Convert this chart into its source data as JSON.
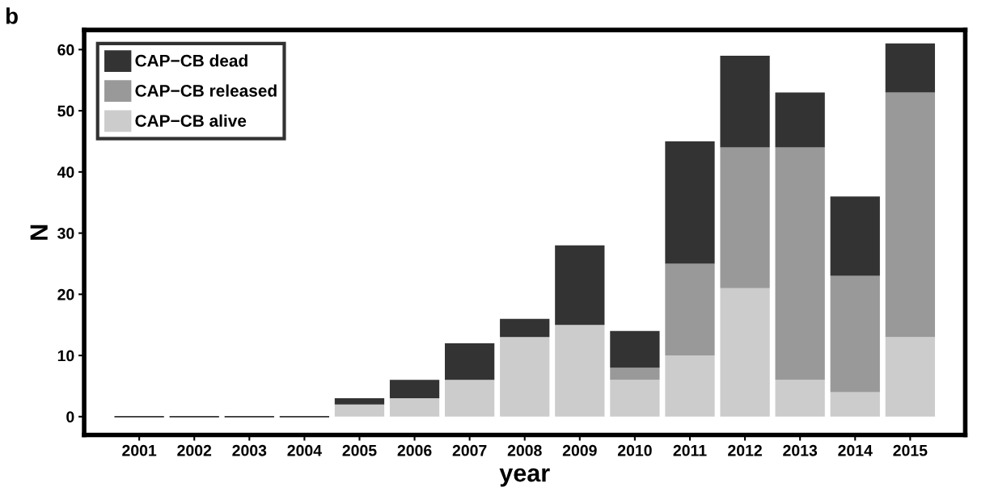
{
  "chart_data": {
    "type": "bar",
    "stacked": true,
    "xlabel": "year",
    "ylabel": "N",
    "annotations": [
      "b"
    ],
    "categories": [
      "2001",
      "2002",
      "2003",
      "2004",
      "2005",
      "2006",
      "2007",
      "2008",
      "2009",
      "2010",
      "2011",
      "2012",
      "2013",
      "2014",
      "2015"
    ],
    "series": [
      {
        "name": "CAP−CB alive",
        "color": "#cccccc",
        "values": [
          0,
          0,
          0,
          0,
          2,
          3,
          6,
          13,
          15,
          6,
          10,
          21,
          6,
          4,
          13
        ]
      },
      {
        "name": "CAP−CB released",
        "color": "#999999",
        "values": [
          0,
          0,
          0,
          0,
          0,
          0,
          0,
          0,
          0,
          2,
          15,
          23,
          38,
          19,
          40
        ]
      },
      {
        "name": "CAP−CB dead",
        "color": "#333333",
        "values": [
          0,
          0,
          0,
          0,
          1,
          3,
          6,
          3,
          13,
          6,
          20,
          15,
          9,
          13,
          8
        ]
      }
    ],
    "ylim": [
      -3,
      63.2
    ],
    "yticks": [
      0,
      10,
      20,
      30,
      40,
      50,
      60
    ],
    "grid": false,
    "legend": "top left"
  }
}
